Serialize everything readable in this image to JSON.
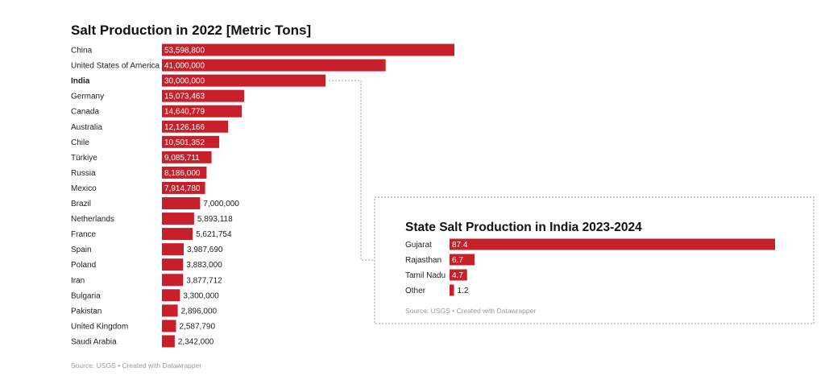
{
  "colors": {
    "bar": "#c8202a",
    "connector": "#9a9a9a",
    "inset_border": "#9a9a9a"
  },
  "chart_data": [
    {
      "type": "bar",
      "orientation": "horizontal",
      "title": "Salt Production in 2022 [Metric Tons]",
      "categories": [
        "China",
        "United States of America",
        "India",
        "Germany",
        "Canada",
        "Australia",
        "Chile",
        "Türkiye",
        "Russia",
        "Mexico",
        "Brazil",
        "Netherlands",
        "France",
        "Spain",
        "Poland",
        "Iran",
        "Bulgaria",
        "Pakistan",
        "United Kingdom",
        "Saudi Arabia"
      ],
      "values": [
        53598800,
        41000000,
        30000000,
        15073463,
        14640779,
        12126166,
        10501352,
        9085711,
        8186000,
        7914780,
        7000000,
        5893118,
        5621754,
        3987690,
        3883000,
        3877712,
        3300000,
        2896000,
        2587790,
        2342000
      ],
      "value_labels": [
        "53,598,800",
        "41,000,000",
        "30,000,000",
        "15,073,463",
        "14,640,779",
        "12,126,166",
        "10,501,352",
        "9,085,711",
        "8,186,000",
        "7,914,780",
        "7,000,000",
        "5,893,118",
        "5,621,754",
        "3,987,690",
        "3,883,000",
        "3,877,712",
        "3,300,000",
        "2,896,000",
        "2,587,790",
        "2,342,000"
      ],
      "highlight": "India",
      "xlim": [
        0,
        53598800
      ],
      "grid": false,
      "source": "Source: USGS • Created with Datawrapper"
    },
    {
      "type": "bar",
      "orientation": "horizontal",
      "title": "State Salt Production in India 2023-2024",
      "categories": [
        "Gujarat",
        "Rajasthan",
        "Tamil Nadu",
        "Other"
      ],
      "values": [
        87.4,
        6.7,
        4.7,
        1.2
      ],
      "value_labels": [
        "87.4",
        "6.7",
        "4.7",
        "1.2"
      ],
      "xlim": [
        0,
        87.4
      ],
      "grid": false,
      "source": "Source: USGS • Created with Datawrapper"
    }
  ]
}
